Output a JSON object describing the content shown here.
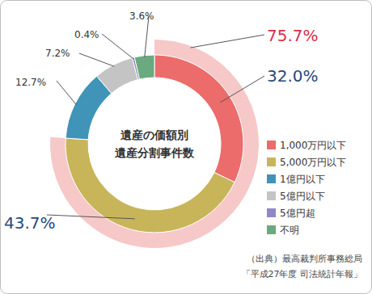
{
  "chart_data": {
    "type": "pie",
    "title": [
      "遺産の価額別",
      "遺産分割事件数"
    ],
    "categories": [
      "1,000万円以下",
      "5,000万円以下",
      "1億円以下",
      "5億円以下",
      "5億円超",
      "不明"
    ],
    "values": [
      32.0,
      43.7,
      12.7,
      7.2,
      0.4,
      3.6
    ],
    "value_labels": [
      "32.0%",
      "43.7%",
      "12.7%",
      "7.2%",
      "0.4%",
      "3.6%"
    ],
    "colors": [
      "#ec6b6b",
      "#c8b55a",
      "#3f94b8",
      "#c4c4c4",
      "#8f88c6",
      "#6aaa7e"
    ],
    "data_labels": true,
    "legend": "right",
    "outer_ring": {
      "values": [
        75.7
      ],
      "value_labels": [
        "75.7%"
      ],
      "color": "#f7c8c8"
    },
    "source": [
      "（出典）最高裁判所事務総局",
      "「平成27年度 司法統計年報」"
    ]
  }
}
